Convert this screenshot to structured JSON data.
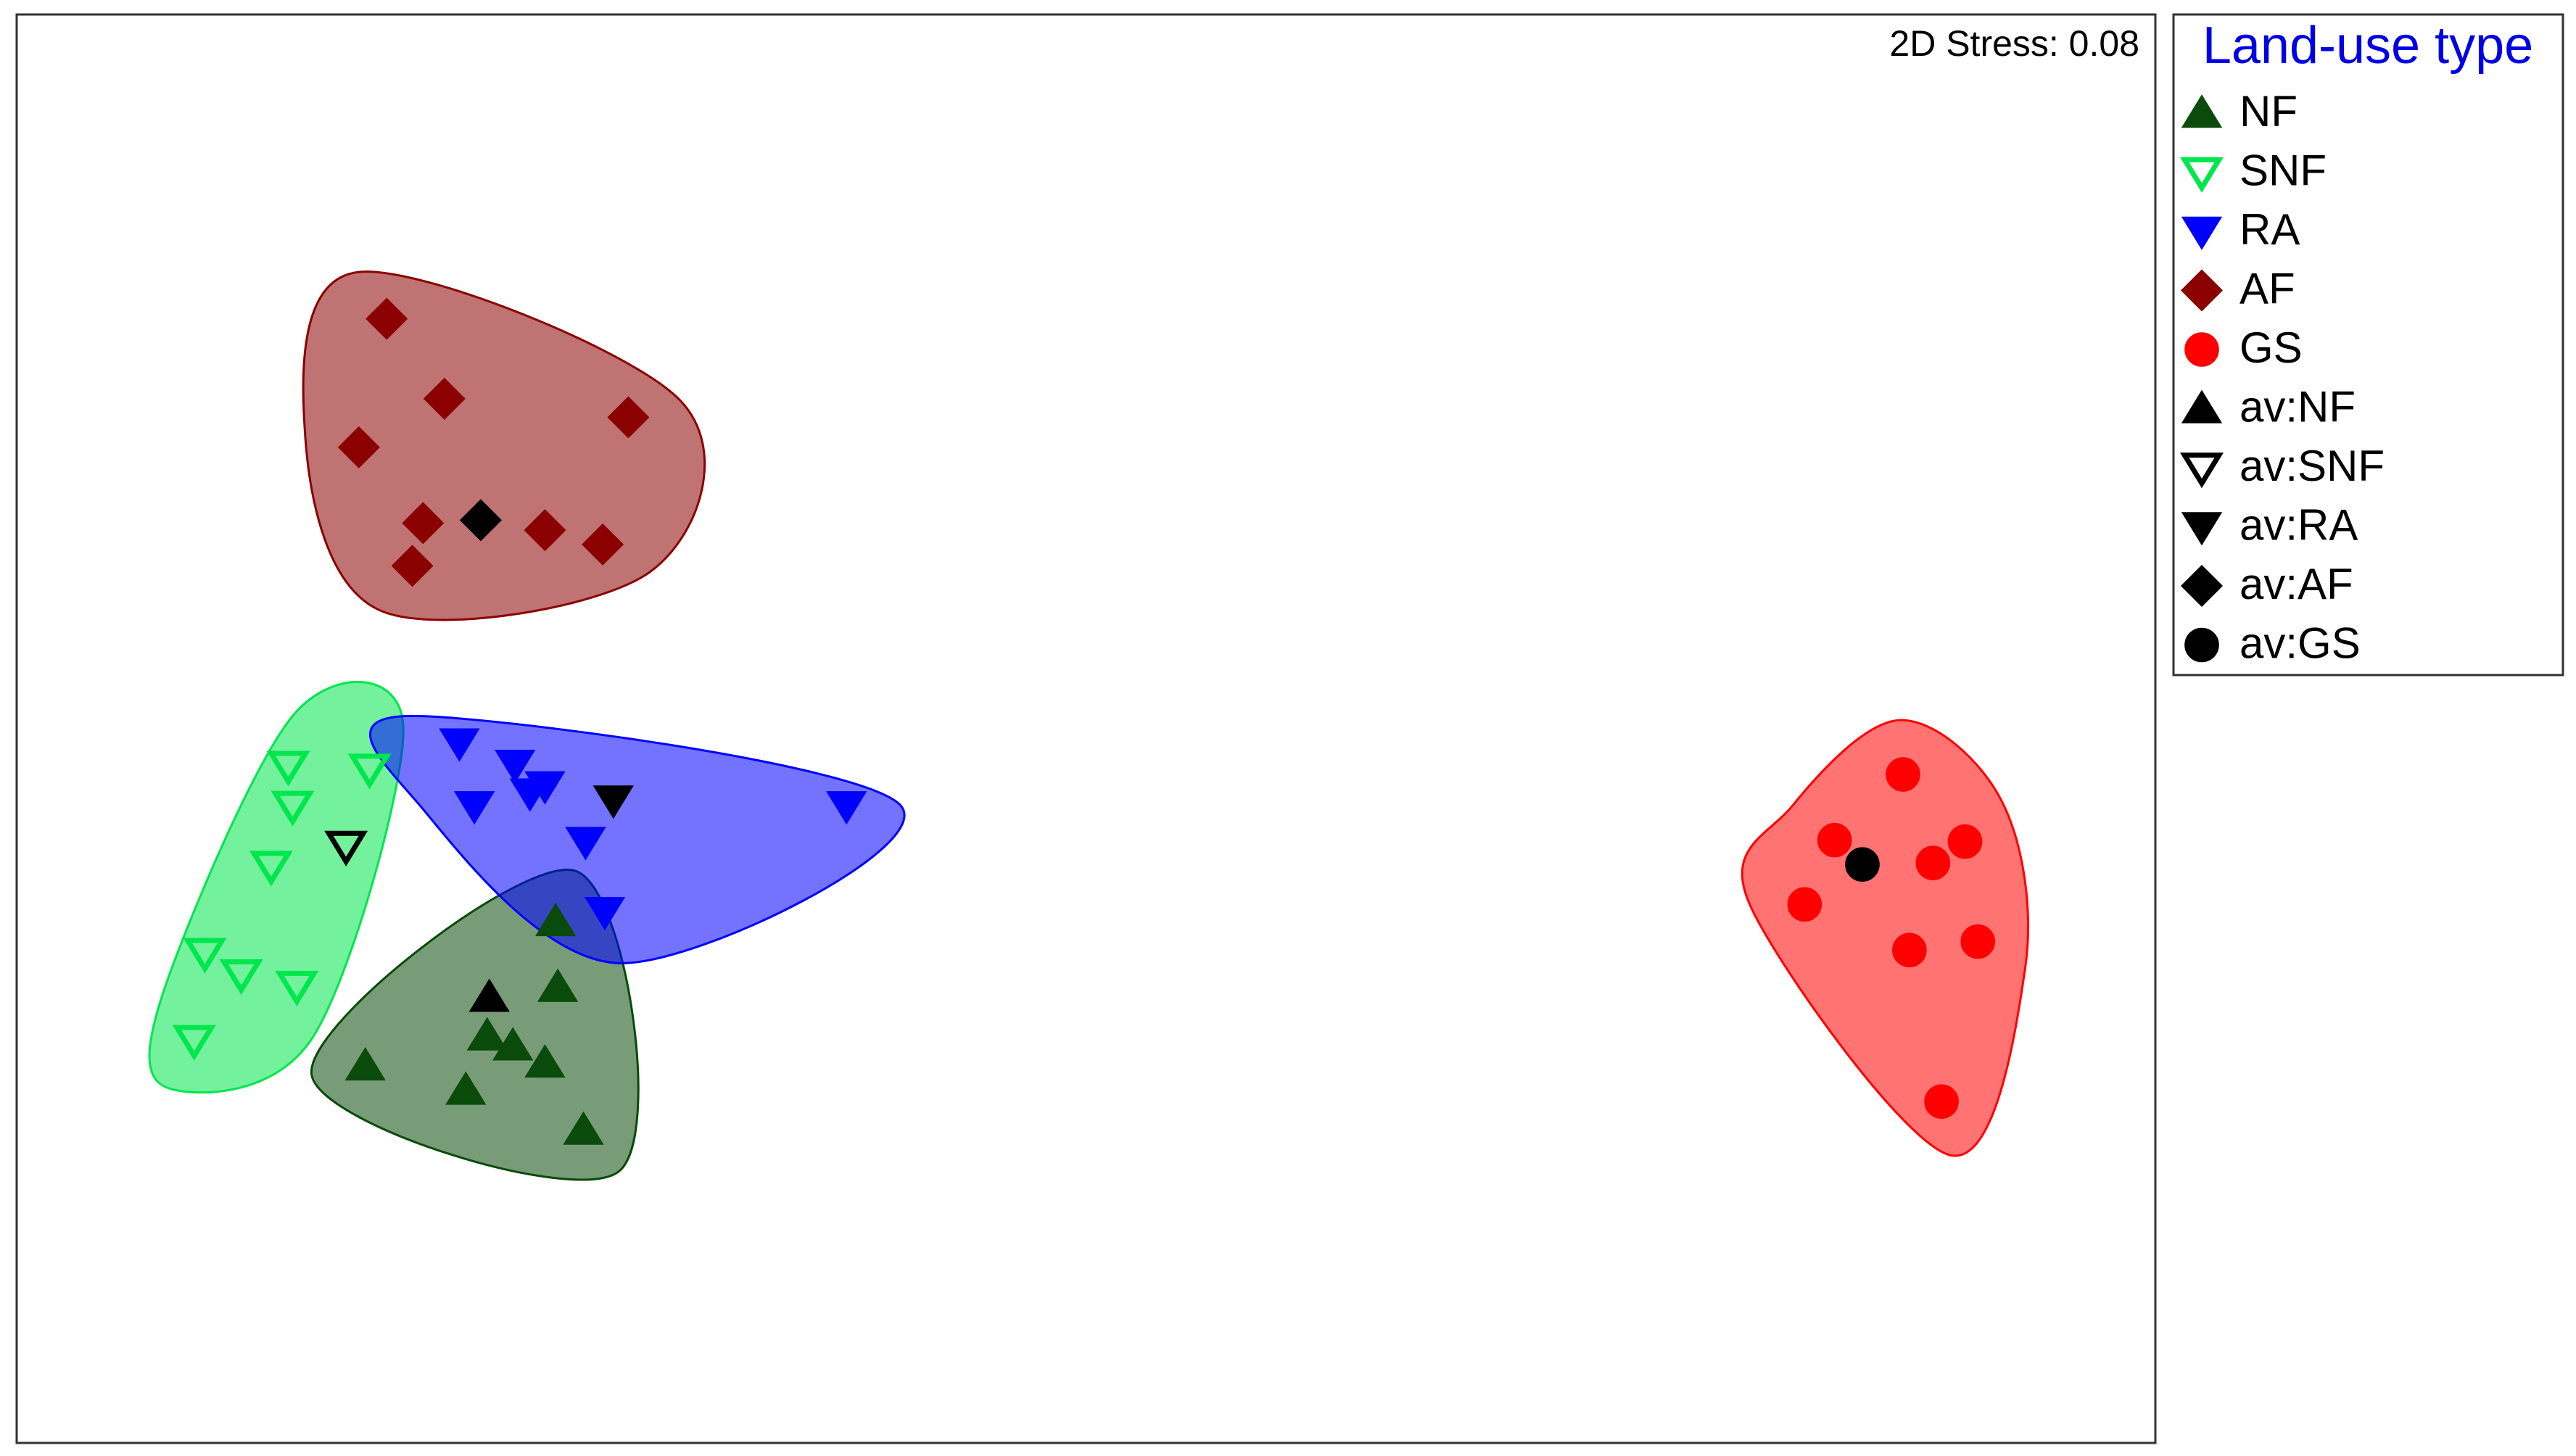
{
  "chart_data": {
    "type": "scatter",
    "annotation": "2D Stress: 0.08",
    "legend_title": "Land-use type",
    "legend_title_color": "#0000e6",
    "legend_position": "right",
    "xlim": [
      0,
      100
    ],
    "ylim": [
      0,
      100
    ],
    "hulls": true,
    "series": [
      {
        "name": "NF",
        "color": "#0a4a0a",
        "marker": "triangle-up",
        "x": [
          25.2,
          25.3,
          22.0,
          23.2,
          24.7,
          16.3,
          21.0,
          26.5
        ],
        "values": [
          36.5,
          31.9,
          28.5,
          27.8,
          26.6,
          26.4,
          24.7,
          21.9
        ]
      },
      {
        "name": "SNF",
        "color": "#00e64d",
        "marker": "triangle-down-open",
        "x": [
          12.7,
          16.5,
          12.9,
          11.9,
          8.8,
          10.5,
          13.1,
          8.3
        ],
        "values": [
          47.4,
          47.2,
          44.6,
          40.4,
          34.3,
          32.8,
          32.0,
          28.2
        ]
      },
      {
        "name": "RA",
        "color": "#0000ff",
        "marker": "triangle-down",
        "x": [
          20.7,
          23.3,
          24.7,
          24.0,
          21.4,
          38.8,
          26.6,
          27.5
        ],
        "values": [
          49.0,
          47.5,
          46.0,
          45.5,
          44.6,
          44.6,
          42.1,
          37.2
        ]
      },
      {
        "name": "AF",
        "color": "#8b0000",
        "marker": "diamond",
        "x": [
          17.3,
          20.0,
          28.6,
          16.0,
          19.0,
          24.7,
          27.4,
          18.5
        ],
        "values": [
          78.7,
          73.1,
          71.8,
          69.7,
          64.4,
          63.9,
          62.9,
          61.4
        ]
      },
      {
        "name": "GS",
        "color": "#ff0000",
        "marker": "circle",
        "x": [
          88.2,
          85.0,
          91.1,
          89.6,
          83.6,
          88.5,
          91.7,
          90.0
        ],
        "values": [
          46.8,
          42.2,
          42.1,
          40.6,
          37.7,
          34.5,
          35.1,
          23.9
        ]
      },
      {
        "name": "av:NF",
        "color": "#000000",
        "marker": "triangle-up",
        "x": [
          22.1
        ],
        "values": [
          31.2
        ]
      },
      {
        "name": "av:SNF",
        "color": "#000000",
        "marker": "triangle-down-open",
        "x": [
          15.4
        ],
        "values": [
          41.8
        ]
      },
      {
        "name": "av:RA",
        "color": "#000000",
        "marker": "triangle-down",
        "x": [
          27.9
        ],
        "values": [
          45.0
        ]
      },
      {
        "name": "av:AF",
        "color": "#000000",
        "marker": "diamond",
        "x": [
          21.7
        ],
        "values": [
          64.6
        ]
      },
      {
        "name": "av:GS",
        "color": "#000000",
        "marker": "circle",
        "x": [
          86.3
        ],
        "values": [
          40.5
        ]
      }
    ]
  }
}
